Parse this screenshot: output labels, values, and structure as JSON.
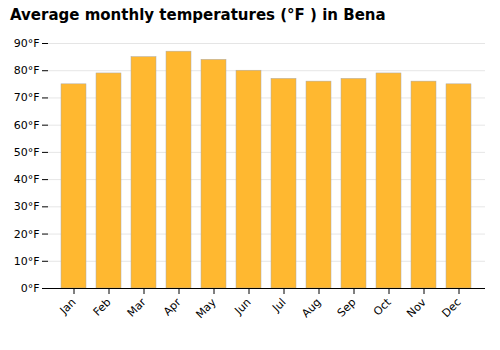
{
  "chart_data": {
    "type": "bar",
    "title": "Average monthly temperatures (°F ) in Bena",
    "categories": [
      "Jan",
      "Feb",
      "Mar",
      "Apr",
      "May",
      "Jun",
      "Jul",
      "Aug",
      "Sep",
      "Oct",
      "Nov",
      "Dec"
    ],
    "values": [
      75,
      79,
      85,
      87,
      84,
      80,
      77,
      76,
      77,
      79,
      76,
      75
    ],
    "color": "#FFB830",
    "ylim": [
      0,
      90
    ],
    "yticks": [
      {
        "value": 0,
        "label": "0°F"
      },
      {
        "value": 10,
        "label": "10°F"
      },
      {
        "value": 20,
        "label": "20°F"
      },
      {
        "value": 30,
        "label": "30°F"
      },
      {
        "value": 40,
        "label": "40°F"
      },
      {
        "value": 50,
        "label": "50°F"
      },
      {
        "value": 60,
        "label": "60°F"
      },
      {
        "value": 70,
        "label": "70°F"
      },
      {
        "value": 80,
        "label": "80°F"
      },
      {
        "value": 90,
        "label": "90°F"
      }
    ],
    "grid": true
  }
}
